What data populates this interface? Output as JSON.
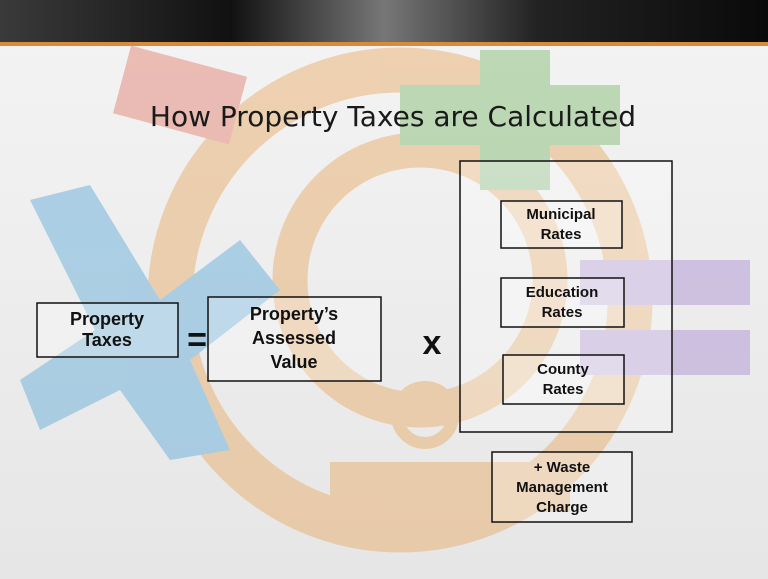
{
  "title": "How Property Taxes are Calculated",
  "operators": [
    "=",
    "x"
  ],
  "boxes": [
    {
      "lines": [
        "Property",
        "Taxes"
      ]
    },
    {
      "lines": [
        "Property’s",
        "Assessed",
        "Value"
      ]
    },
    {
      "lines": [
        "Municipal",
        "Rates"
      ]
    },
    {
      "lines": [
        "Education",
        "Rates"
      ]
    },
    {
      "lines": [
        "County",
        "Rates"
      ]
    },
    {
      "lines": [
        "+ Waste",
        "Management",
        "Charge"
      ]
    }
  ]
}
